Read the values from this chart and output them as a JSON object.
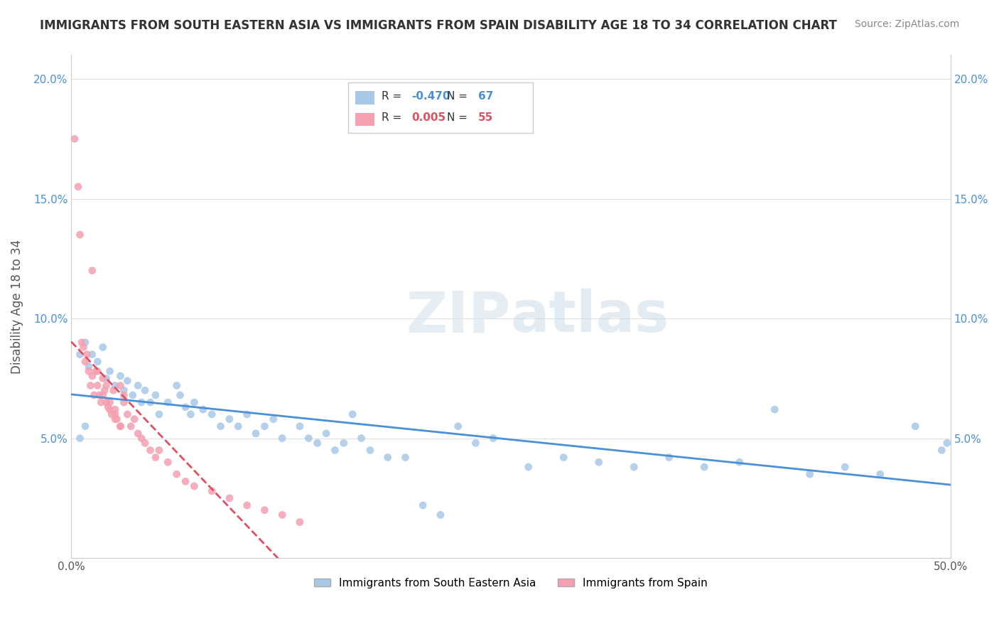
{
  "title": "IMMIGRANTS FROM SOUTH EASTERN ASIA VS IMMIGRANTS FROM SPAIN DISABILITY AGE 18 TO 34 CORRELATION CHART",
  "source": "Source: ZipAtlas.com",
  "ylabel": "Disability Age 18 to 34",
  "xlim": [
    0.0,
    0.5
  ],
  "ylim": [
    0.0,
    0.21
  ],
  "legend_blue_r": "-0.470",
  "legend_blue_n": "67",
  "legend_pink_r": "0.005",
  "legend_pink_n": "55",
  "blue_color": "#a8c8e8",
  "pink_color": "#f4a0b0",
  "blue_line_color": "#4a90d9",
  "pink_line_color": "#e05060",
  "blue_scatter_x": [
    0.005,
    0.008,
    0.01,
    0.012,
    0.015,
    0.018,
    0.02,
    0.022,
    0.025,
    0.028,
    0.03,
    0.032,
    0.035,
    0.038,
    0.04,
    0.042,
    0.045,
    0.048,
    0.05,
    0.055,
    0.06,
    0.062,
    0.065,
    0.068,
    0.07,
    0.075,
    0.08,
    0.085,
    0.09,
    0.095,
    0.1,
    0.105,
    0.11,
    0.115,
    0.12,
    0.13,
    0.135,
    0.14,
    0.145,
    0.15,
    0.155,
    0.16,
    0.165,
    0.17,
    0.18,
    0.19,
    0.2,
    0.21,
    0.22,
    0.23,
    0.24,
    0.26,
    0.28,
    0.3,
    0.32,
    0.34,
    0.36,
    0.38,
    0.4,
    0.42,
    0.44,
    0.46,
    0.48,
    0.495,
    0.498,
    0.005,
    0.008
  ],
  "blue_scatter_y": [
    0.085,
    0.09,
    0.08,
    0.085,
    0.082,
    0.088,
    0.075,
    0.078,
    0.072,
    0.076,
    0.07,
    0.074,
    0.068,
    0.072,
    0.065,
    0.07,
    0.065,
    0.068,
    0.06,
    0.065,
    0.072,
    0.068,
    0.063,
    0.06,
    0.065,
    0.062,
    0.06,
    0.055,
    0.058,
    0.055,
    0.06,
    0.052,
    0.055,
    0.058,
    0.05,
    0.055,
    0.05,
    0.048,
    0.052,
    0.045,
    0.048,
    0.06,
    0.05,
    0.045,
    0.042,
    0.042,
    0.022,
    0.018,
    0.055,
    0.048,
    0.05,
    0.038,
    0.042,
    0.04,
    0.038,
    0.042,
    0.038,
    0.04,
    0.062,
    0.035,
    0.038,
    0.035,
    0.055,
    0.045,
    0.048,
    0.05,
    0.055
  ],
  "pink_scatter_x": [
    0.002,
    0.004,
    0.005,
    0.006,
    0.007,
    0.008,
    0.009,
    0.01,
    0.011,
    0.012,
    0.013,
    0.014,
    0.015,
    0.016,
    0.017,
    0.018,
    0.019,
    0.02,
    0.021,
    0.022,
    0.023,
    0.024,
    0.025,
    0.026,
    0.028,
    0.03,
    0.032,
    0.034,
    0.036,
    0.038,
    0.04,
    0.042,
    0.045,
    0.048,
    0.05,
    0.055,
    0.06,
    0.065,
    0.07,
    0.08,
    0.09,
    0.1,
    0.11,
    0.12,
    0.13,
    0.025,
    0.028,
    0.03,
    0.012,
    0.015,
    0.018,
    0.02,
    0.022,
    0.025,
    0.028
  ],
  "pink_scatter_y": [
    0.175,
    0.155,
    0.135,
    0.09,
    0.088,
    0.082,
    0.085,
    0.078,
    0.072,
    0.076,
    0.068,
    0.078,
    0.072,
    0.068,
    0.065,
    0.075,
    0.07,
    0.065,
    0.063,
    0.065,
    0.06,
    0.07,
    0.062,
    0.058,
    0.072,
    0.065,
    0.06,
    0.055,
    0.058,
    0.052,
    0.05,
    0.048,
    0.045,
    0.042,
    0.045,
    0.04,
    0.035,
    0.032,
    0.03,
    0.028,
    0.025,
    0.022,
    0.02,
    0.018,
    0.015,
    0.058,
    0.055,
    0.068,
    0.12,
    0.078,
    0.068,
    0.072,
    0.062,
    0.06,
    0.055
  ],
  "blue_dot_sizes": 60,
  "pink_dot_sizes": 60
}
